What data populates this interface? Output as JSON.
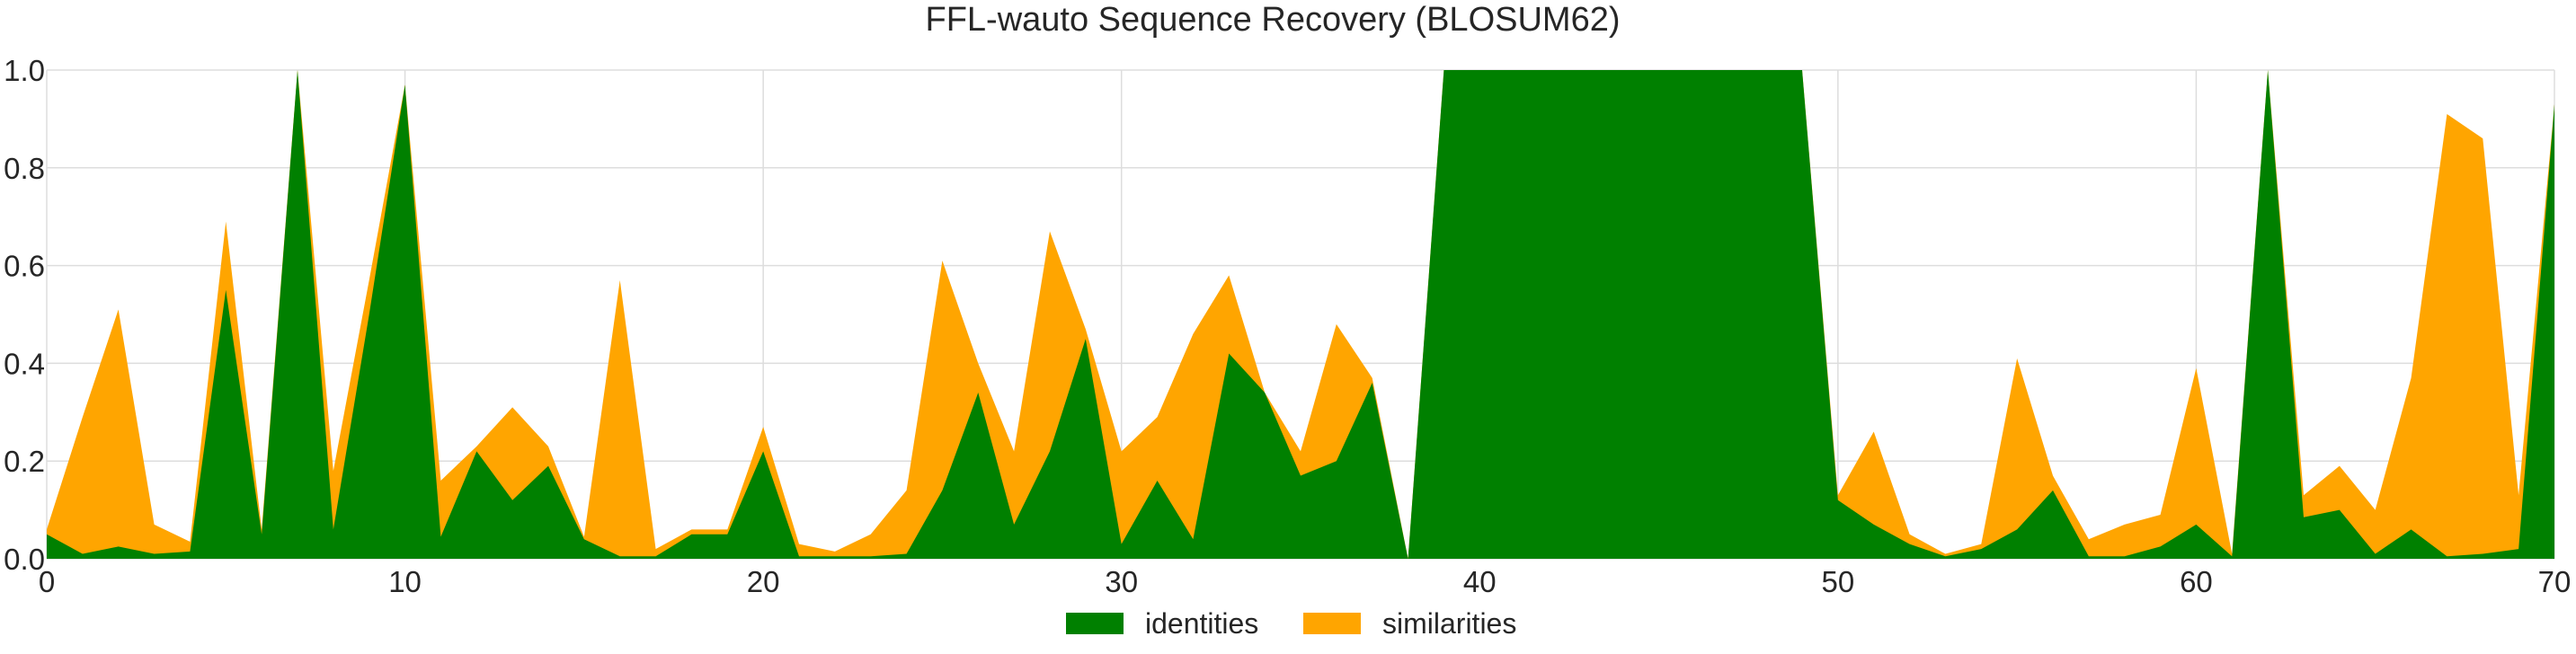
{
  "chart_data": {
    "type": "area",
    "title": "FFL-wauto Sequence Recovery (BLOSUM62)",
    "xlabel": "",
    "ylabel": "",
    "xlim": [
      0,
      70
    ],
    "ylim": [
      0,
      1.0
    ],
    "x_ticks": [
      "0",
      "10",
      "20",
      "30",
      "40",
      "50",
      "60",
      "70"
    ],
    "y_ticks": [
      "0.0",
      "0.2",
      "0.4",
      "0.6",
      "0.8",
      "1.0"
    ],
    "grid": true,
    "legend_placement": "bottom-center",
    "x": [
      0,
      1,
      2,
      3,
      4,
      5,
      6,
      7,
      8,
      9,
      10,
      11,
      12,
      13,
      14,
      15,
      16,
      17,
      18,
      19,
      20,
      21,
      22,
      23,
      24,
      25,
      26,
      27,
      28,
      29,
      30,
      31,
      32,
      33,
      34,
      35,
      36,
      37,
      38,
      39,
      40,
      41,
      42,
      43,
      44,
      45,
      46,
      47,
      48,
      49,
      50,
      51,
      52,
      53,
      54,
      55,
      56,
      57,
      58,
      59,
      60,
      61,
      62,
      63,
      64,
      65,
      66,
      67,
      68,
      69,
      70
    ],
    "series": [
      {
        "name": "identities",
        "color": "#008000",
        "values": [
          0.05,
          0.01,
          0.025,
          0.01,
          0.015,
          0.55,
          0.05,
          1.0,
          0.06,
          0.5,
          0.97,
          0.045,
          0.22,
          0.12,
          0.19,
          0.04,
          0.005,
          0.005,
          0.05,
          0.05,
          0.22,
          0.005,
          0.005,
          0.005,
          0.01,
          0.14,
          0.34,
          0.07,
          0.22,
          0.45,
          0.03,
          0.16,
          0.04,
          0.42,
          0.34,
          0.17,
          0.2,
          0.36,
          0.0,
          1.0,
          1.0,
          1.0,
          1.0,
          1.0,
          1.0,
          1.0,
          1.0,
          1.0,
          1.0,
          1.0,
          0.12,
          0.07,
          0.03,
          0.005,
          0.02,
          0.06,
          0.14,
          0.005,
          0.005,
          0.025,
          0.07,
          0.005,
          1.0,
          0.085,
          0.1,
          0.01,
          0.06,
          0.005,
          0.01,
          0.02,
          0.93
        ]
      },
      {
        "name": "similarities",
        "color": "#ffa500",
        "values": [
          0.06,
          0.29,
          0.51,
          0.07,
          0.035,
          0.69,
          0.06,
          1.0,
          0.18,
          0.57,
          0.97,
          0.16,
          0.23,
          0.31,
          0.23,
          0.045,
          0.57,
          0.02,
          0.06,
          0.06,
          0.27,
          0.03,
          0.015,
          0.05,
          0.14,
          0.61,
          0.4,
          0.22,
          0.67,
          0.47,
          0.22,
          0.29,
          0.46,
          0.58,
          0.34,
          0.22,
          0.48,
          0.37,
          0.0,
          1.0,
          1.0,
          1.0,
          1.0,
          1.0,
          1.0,
          1.0,
          1.0,
          1.0,
          1.0,
          1.0,
          0.13,
          0.26,
          0.05,
          0.01,
          0.03,
          0.41,
          0.17,
          0.04,
          0.07,
          0.09,
          0.39,
          0.01,
          1.0,
          0.13,
          0.19,
          0.1,
          0.37,
          0.91,
          0.86,
          0.13,
          0.93
        ]
      }
    ]
  }
}
